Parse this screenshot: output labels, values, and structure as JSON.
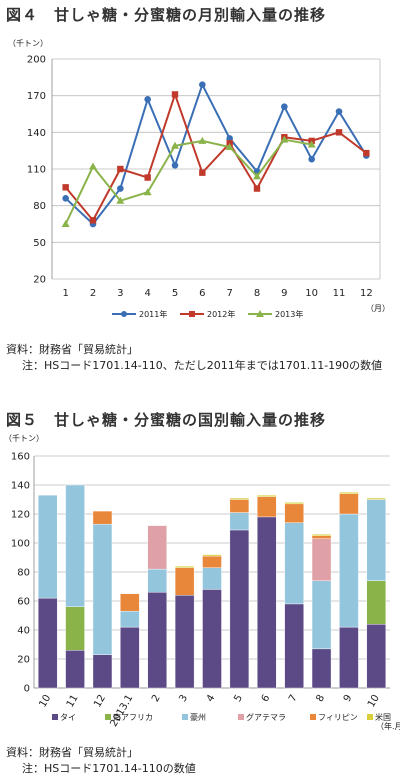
{
  "figures": {
    "fig4_title": "図４　甘しゃ糖・分蜜糖の月別輸入量の推移",
    "fig4_source": "資料：財務省「貿易統計」",
    "fig4_note": "注：HSコード1701.14-110、ただし2011年までは1701.11-190の数値",
    "fig5_title": "図５　甘しゃ糖・分蜜糖の国別輸入量の推移",
    "fig5_source": "資料：財務省「貿易統計」",
    "fig5_note": "注：HSコード1701.14-110の数値"
  },
  "chart_data": [
    {
      "type": "line",
      "y_unit_label": "（千トン）",
      "x_unit_label": "（月）",
      "x": [
        "1",
        "2",
        "3",
        "4",
        "5",
        "6",
        "7",
        "8",
        "9",
        "10",
        "11",
        "12"
      ],
      "ylim": [
        20,
        200
      ],
      "yticks": [
        20,
        50,
        80,
        110,
        140,
        170,
        200
      ],
      "grid": "horizontal",
      "legend_position": "bottom",
      "series": [
        {
          "name": "2011年",
          "color": "#3a6fb5",
          "marker": "circle",
          "values": [
            86,
            65,
            94,
            167,
            113,
            179,
            135,
            108,
            161,
            118,
            157,
            121
          ]
        },
        {
          "name": "2012年",
          "color": "#c0392b",
          "marker": "square",
          "values": [
            95,
            68,
            110,
            103,
            171,
            107,
            131,
            94,
            136,
            133,
            140,
            123
          ]
        },
        {
          "name": "2013年",
          "color": "#8ab34a",
          "marker": "triangle",
          "values": [
            65,
            112,
            84,
            91,
            129,
            133,
            128,
            104,
            134,
            130,
            null,
            null
          ]
        }
      ]
    },
    {
      "type": "bar",
      "stacked": true,
      "y_unit_label": "（千トン）",
      "x_unit_label": "（年.月）",
      "categories": [
        "10",
        "11",
        "12",
        "2013.1",
        "2",
        "3",
        "4",
        "5",
        "6",
        "7",
        "8",
        "9",
        "10"
      ],
      "ylim": [
        0,
        160
      ],
      "yticks": [
        0,
        20,
        40,
        60,
        80,
        100,
        120,
        140,
        160
      ],
      "grid": "horizontal",
      "legend_position": "bottom",
      "series": [
        {
          "name": "タイ",
          "color": "#5b4a85",
          "values": [
            62,
            26,
            23,
            42,
            66,
            64,
            68,
            109,
            118,
            58,
            27,
            42,
            44
          ]
        },
        {
          "name": "南アフリカ",
          "color": "#8ab34a",
          "values": [
            0,
            30,
            0,
            0,
            0,
            0,
            0,
            0,
            0,
            0,
            0,
            0,
            30
          ]
        },
        {
          "name": "豪州",
          "color": "#93c6dd",
          "values": [
            71,
            84,
            90,
            11,
            16,
            0,
            15,
            12,
            0,
            56,
            47,
            78,
            56
          ]
        },
        {
          "name": "グアテマラ",
          "color": "#e0a0a8",
          "values": [
            0,
            0,
            0,
            0,
            30,
            0,
            0,
            0,
            0,
            0,
            29,
            0,
            0
          ]
        },
        {
          "name": "フィリピン",
          "color": "#e8863a",
          "values": [
            0,
            0,
            9,
            12,
            0,
            19,
            8,
            9,
            14,
            13,
            2,
            14,
            0
          ]
        },
        {
          "name": "米国",
          "color": "#d8cf3a",
          "values": [
            0,
            0,
            0,
            0,
            0,
            1,
            1,
            1,
            1,
            1,
            1,
            1,
            1
          ]
        }
      ]
    }
  ]
}
